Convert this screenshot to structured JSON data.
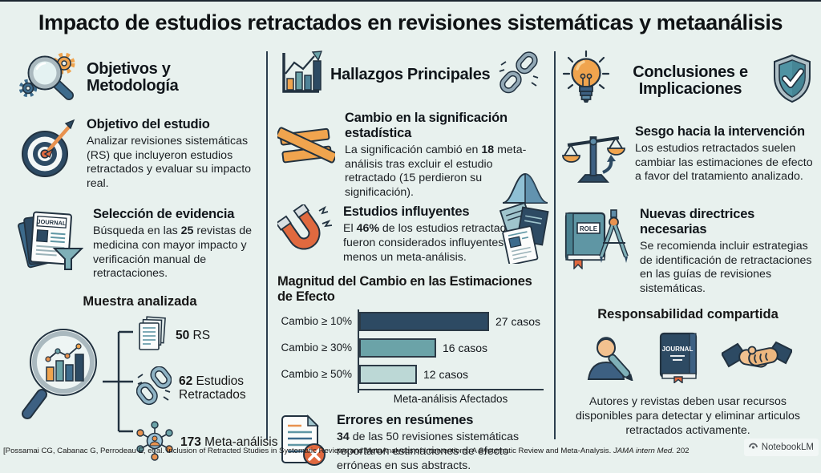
{
  "title": "Impacto de estudios retractados en revisiones sistemáticas y metaanálisis",
  "left": {
    "header": "Objetivos y Metodología",
    "objective": {
      "heading": "Objetivo del estudio",
      "body_pre": "Analizar revisiones sistemáticas (RS) que incluyeron estudios retractados y evaluar su impacto real.",
      "body_bold": "",
      "body_post": ""
    },
    "evidence": {
      "heading": "Selección de evidencia",
      "body_pre": "Búsqueda en las ",
      "body_bold": "25",
      "body_post": " revistas de medicina con mayor impacto y verificación manual de retractaciones."
    },
    "sample": {
      "heading": "Muestra analizada",
      "items": [
        {
          "value": "50",
          "label": " RS"
        },
        {
          "value": "62",
          "label": " Estudios Retractados"
        },
        {
          "value": "173",
          "label": " Meta-análisis"
        }
      ]
    }
  },
  "middle": {
    "header": "Hallazgos Principales",
    "significance": {
      "heading": "Cambio en la significación estadística",
      "body_pre": "La significación cambió en ",
      "body_bold": "18",
      "body_post": " meta-análisis tras excluir el estudio retractado (15 perdieron su significación)."
    },
    "influential": {
      "heading": "Estudios influyentes",
      "body_pre": "El ",
      "body_bold": "46%",
      "body_post": " de los estudios retractados fueron considerados influyentes en al menos un meta-análisis."
    },
    "errors": {
      "heading": "Errores en resúmenes",
      "body_pre": "",
      "body_bold": "34",
      "body_post": " de las 50 revisiones sistemáticas reportaron estimaciones de efecto erróneas en sus abstracts."
    }
  },
  "right": {
    "header": "Conclusiones e Implicaciones",
    "bias": {
      "heading": "Sesgo hacia la intervención",
      "body_pre": "Los estudios retractados suelen cambiar las estimaciones de efecto a favor del tratamiento analizado.",
      "body_bold": "",
      "body_post": ""
    },
    "guidelines": {
      "heading": "Nuevas directrices necesarias",
      "body_pre": "Se recomienda incluir estrategias de identificación de retractaciones en las guías de revisiones sistemáticas.",
      "body_bold": "",
      "body_post": ""
    },
    "responsibility": {
      "heading": "Responsabilidad compartida",
      "body_pre": "Autores y revistas deben usar recursos disponibles para detectar y eliminar articulos retractados activamente.",
      "body_bold": "",
      "body_post": ""
    }
  },
  "chart_data": {
    "type": "bar",
    "orientation": "horizontal",
    "title": "Magnitud del Cambio en las Estimaciones de Efecto",
    "categories": [
      "Cambio ≥ 10%",
      "Cambio ≥ 30%",
      "Cambio ≥ 50%"
    ],
    "values": [
      27,
      16,
      12
    ],
    "value_labels": [
      "27 casos",
      "16 casos",
      "12 casos"
    ],
    "xlabel": "Meta-análisis Afectados",
    "xlim": [
      0,
      28
    ],
    "grid": false,
    "colors": [
      "#2d4a63",
      "#6ba3a8",
      "#bcd8d6"
    ]
  },
  "icon_labels": {
    "journal": "JOURNAL",
    "role": "ROLE",
    "journal_book": "JOURNAL"
  },
  "footer": {
    "cite_pre": "[Possamai CG, Cabanac G, Perrodeau E, et al. Inclusion of Retracted Studies in Systematic Reviews and MetaAnalyses of Interventions: A Systematic Review and Meta-Analysis. ",
    "cite_journal": "JAMA intern Med.",
    "cite_post": " 202",
    "watermark": "NotebookLM"
  },
  "colors": {
    "background": "#e8f1ee",
    "accent_orange": "#f0a44e",
    "accent_redorange": "#e0693f",
    "navy": "#2d4a63",
    "steel": "#3d6b8c",
    "teal": "#6ba3a8",
    "light_teal": "#bcd8d6",
    "ink": "#223240"
  }
}
